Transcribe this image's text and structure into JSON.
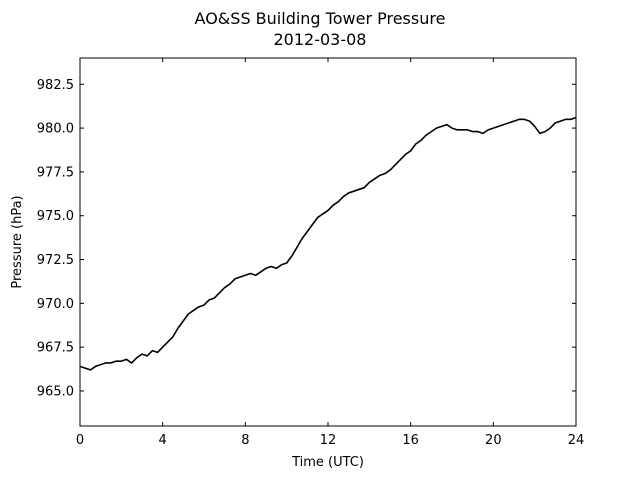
{
  "chart_data": {
    "type": "line",
    "title": "AO&SS Building Tower Pressure",
    "subtitle": "2012-03-08",
    "xlabel": "Time (UTC)",
    "ylabel": "Pressure (hPa)",
    "xlim": [
      0,
      24
    ],
    "ylim": [
      963.0,
      984.0
    ],
    "xticks": [
      0,
      4,
      8,
      12,
      16,
      20,
      24
    ],
    "yticks": [
      965.0,
      967.5,
      970.0,
      972.5,
      975.0,
      977.5,
      980.0,
      982.5
    ],
    "ytick_labels": [
      "965.0",
      "967.5",
      "970.0",
      "972.5",
      "975.0",
      "977.5",
      "980.0",
      "982.5"
    ],
    "grid": false,
    "line_color": "#000000",
    "series": [
      {
        "x": [
          0.0,
          0.25,
          0.5,
          0.75,
          1.0,
          1.25,
          1.5,
          1.75,
          2.0,
          2.25,
          2.5,
          2.75,
          3.0,
          3.25,
          3.5,
          3.75,
          4.0,
          4.25,
          4.5,
          4.75,
          5.0,
          5.25,
          5.5,
          5.75,
          6.0,
          6.25,
          6.5,
          6.75,
          7.0,
          7.25,
          7.5,
          7.75,
          8.0,
          8.25,
          8.5,
          8.75,
          9.0,
          9.25,
          9.5,
          9.75,
          10.0,
          10.25,
          10.5,
          10.75,
          11.0,
          11.25,
          11.5,
          11.75,
          12.0,
          12.25,
          12.5,
          12.75,
          13.0,
          13.25,
          13.5,
          13.75,
          14.0,
          14.25,
          14.5,
          14.75,
          15.0,
          15.25,
          15.5,
          15.75,
          16.0,
          16.25,
          16.5,
          16.75,
          17.0,
          17.25,
          17.5,
          17.75,
          18.0,
          18.25,
          18.5,
          18.75,
          19.0,
          19.25,
          19.5,
          19.75,
          20.0,
          20.25,
          20.5,
          20.75,
          21.0,
          21.25,
          21.5,
          21.75,
          22.0,
          22.25,
          22.5,
          22.75,
          23.0,
          23.25,
          23.5,
          23.75,
          24.0
        ],
        "values": [
          966.4,
          966.3,
          966.2,
          966.4,
          966.5,
          966.6,
          966.6,
          966.7,
          966.7,
          966.8,
          966.6,
          966.9,
          967.1,
          967.0,
          967.3,
          967.2,
          967.5,
          967.8,
          968.1,
          968.6,
          969.0,
          969.4,
          969.6,
          969.8,
          969.9,
          970.2,
          970.3,
          970.6,
          970.9,
          971.1,
          971.4,
          971.5,
          971.6,
          971.7,
          971.6,
          971.8,
          972.0,
          972.1,
          972.0,
          972.2,
          972.3,
          972.7,
          973.2,
          973.7,
          974.1,
          974.5,
          974.9,
          975.1,
          975.3,
          975.6,
          975.8,
          976.1,
          976.3,
          976.4,
          976.5,
          976.6,
          976.9,
          977.1,
          977.3,
          977.4,
          977.6,
          977.9,
          978.2,
          978.5,
          978.7,
          979.1,
          979.3,
          979.6,
          979.8,
          980.0,
          980.1,
          980.2,
          980.0,
          979.9,
          979.9,
          979.9,
          979.8,
          979.8,
          979.7,
          979.9,
          980.0,
          980.1,
          980.2,
          980.3,
          980.4,
          980.5,
          980.5,
          980.4,
          980.1,
          979.7,
          979.8,
          980.0,
          980.3,
          980.4,
          980.5,
          980.5,
          980.6
        ]
      }
    ]
  }
}
